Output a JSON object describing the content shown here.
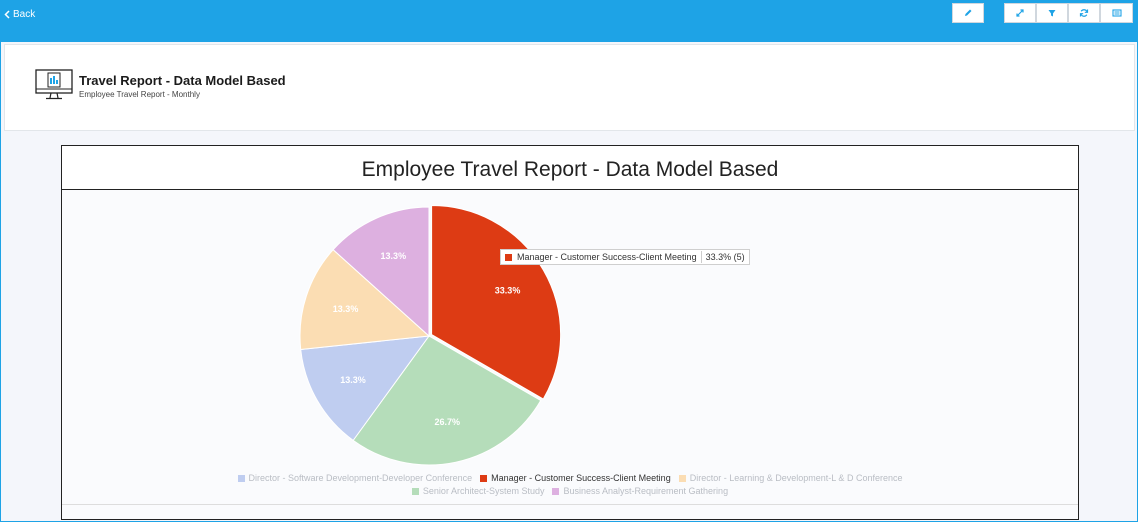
{
  "topbar": {
    "back_label": "Back",
    "color": "#1ea3e6"
  },
  "toolbar": {
    "icons": [
      "pencil-icon",
      "expand-icon",
      "filter-icon",
      "refresh-icon",
      "layout-icon"
    ]
  },
  "header": {
    "title": "Travel Report - Data Model Based",
    "subtitle": "Employee Travel Report - Monthly",
    "icon": "monitor-report-icon"
  },
  "chart_data": {
    "type": "pie",
    "title": "Employee Travel Report - Data Model Based",
    "labels": [
      "Manager - Customer Success-Client Meeting",
      "Senior Architect-System Study",
      "Director - Software Development-Developer Conference",
      "Director - Learning & Development-L & D Conference",
      "Business Analyst-Requirement Gathering"
    ],
    "values": [
      5,
      4,
      2,
      2,
      2
    ],
    "percent_labels": [
      "33.3%",
      "26.7%",
      "13.3%",
      "13.3%",
      "13.3%"
    ],
    "colors": [
      "#dd3b14",
      "#b5ddba",
      "#bfcdf0",
      "#fbddb3",
      "#ddb0e0"
    ],
    "legend": {
      "rows": [
        [
          {
            "label": "Director - Software Development-Developer Conference",
            "color": "#bfcdf0",
            "active": false
          },
          {
            "label": "Manager - Customer Success-Client Meeting",
            "color": "#dd3b14",
            "active": true
          },
          {
            "label": "Director - Learning & Development-L & D Conference",
            "color": "#fbddb3",
            "active": false
          }
        ],
        [
          {
            "label": "Senior Architect-System Study",
            "color": "#b5ddba",
            "active": false
          },
          {
            "label": "Business Analyst-Requirement Gathering",
            "color": "#ddb0e0",
            "active": false
          }
        ]
      ],
      "placement": "bottom"
    },
    "tooltip": {
      "label": "Manager - Customer Success-Client Meeting",
      "value": "33.3% (5)"
    }
  }
}
